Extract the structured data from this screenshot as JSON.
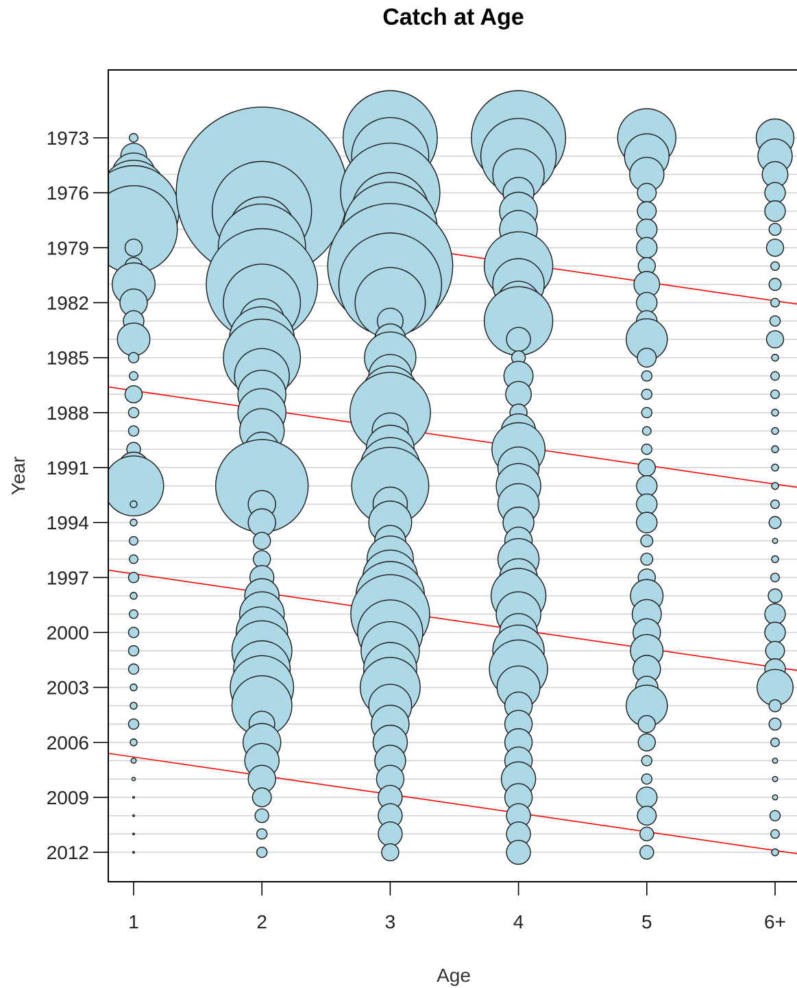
{
  "chart_data": {
    "type": "scatter",
    "subtype": "bubble",
    "title": "Catch at Age",
    "xlabel": "Age",
    "ylabel": "Year",
    "x_categories": [
      "1",
      "2",
      "3",
      "4",
      "5",
      "6+"
    ],
    "y_ticks": [
      1973,
      1976,
      1979,
      1982,
      1985,
      1988,
      1991,
      1994,
      1997,
      2000,
      2003,
      2006,
      2009,
      2012
    ],
    "ylim": [
      1969.4,
      2013.6
    ],
    "grid": "horizontal lines at each year",
    "bubble_fill": "#add8e6",
    "bubble_stroke": "#1a1a1a",
    "cohort_line_color": "#ff0000",
    "radius_scale": "area proportional to catch; values are relative radii (largest = 1.0)",
    "series": [
      {
        "age": "1",
        "values": [
          0.05,
          0.15,
          0.25,
          0.38,
          0.53,
          0.51,
          0.1,
          0.1,
          0.25,
          0.16,
          0.12,
          0.19,
          0.06,
          0.05,
          0.1,
          0.06,
          0.06,
          0.08,
          0.18,
          0.35,
          0.04,
          0.04,
          0.05,
          0.05,
          0.06,
          0.04,
          0.05,
          0.06,
          0.06,
          0.06,
          0.04,
          0.04,
          0.06,
          0.04,
          0.03,
          0.02,
          0.01,
          0.01,
          0.01,
          0.01
        ]
      },
      {
        "age": "2",
        "values": [
          0.1,
          0.13,
          0.5,
          1.0,
          0.58,
          0.38,
          0.51,
          0.37,
          0.65,
          0.45,
          0.26,
          0.38,
          0.45,
          0.32,
          0.28,
          0.28,
          0.26,
          0.2,
          0.3,
          0.54,
          0.16,
          0.16,
          0.1,
          0.1,
          0.14,
          0.2,
          0.26,
          0.3,
          0.35,
          0.33,
          0.37,
          0.35,
          0.15,
          0.22,
          0.2,
          0.16,
          0.11,
          0.08,
          0.06,
          0.06
        ]
      },
      {
        "age": "3",
        "values": [
          0.55,
          0.45,
          0.35,
          0.58,
          0.45,
          0.55,
          0.4,
          0.73,
          0.6,
          0.41,
          0.15,
          0.18,
          0.3,
          0.25,
          0.33,
          0.47,
          0.21,
          0.28,
          0.35,
          0.45,
          0.2,
          0.25,
          0.18,
          0.27,
          0.32,
          0.4,
          0.46,
          0.38,
          0.34,
          0.31,
          0.35,
          0.25,
          0.22,
          0.2,
          0.18,
          0.16,
          0.14,
          0.14,
          0.14,
          0.1
        ]
      },
      {
        "age": "4",
        "values": [
          0.55,
          0.44,
          0.3,
          0.18,
          0.22,
          0.22,
          0.18,
          0.4,
          0.3,
          0.25,
          0.4,
          0.14,
          0.08,
          0.17,
          0.15,
          0.1,
          0.2,
          0.31,
          0.24,
          0.26,
          0.24,
          0.18,
          0.16,
          0.24,
          0.22,
          0.32,
          0.26,
          0.22,
          0.3,
          0.34,
          0.25,
          0.16,
          0.16,
          0.16,
          0.16,
          0.2,
          0.16,
          0.14,
          0.14,
          0.14
        ]
      },
      {
        "age": "5",
        "values": [
          0.34,
          0.26,
          0.2,
          0.11,
          0.11,
          0.12,
          0.12,
          0.1,
          0.15,
          0.12,
          0.12,
          0.24,
          0.11,
          0.06,
          0.06,
          0.06,
          0.05,
          0.06,
          0.1,
          0.12,
          0.12,
          0.12,
          0.07,
          0.07,
          0.1,
          0.19,
          0.17,
          0.16,
          0.19,
          0.16,
          0.13,
          0.24,
          0.1,
          0.1,
          0.06,
          0.06,
          0.12,
          0.11,
          0.08,
          0.08
        ]
      },
      {
        "age": "6+",
        "values": [
          0.22,
          0.2,
          0.15,
          0.12,
          0.12,
          0.07,
          0.1,
          0.05,
          0.07,
          0.05,
          0.06,
          0.1,
          0.04,
          0.05,
          0.05,
          0.04,
          0.04,
          0.04,
          0.04,
          0.04,
          0.05,
          0.07,
          0.03,
          0.04,
          0.05,
          0.08,
          0.12,
          0.12,
          0.11,
          0.12,
          0.21,
          0.07,
          0.07,
          0.05,
          0.03,
          0.03,
          0.03,
          0.06,
          0.05,
          0.04
        ]
      }
    ],
    "years": [
      1973,
      1974,
      1975,
      1976,
      1977,
      1978,
      1979,
      1980,
      1981,
      1982,
      1983,
      1984,
      1985,
      1986,
      1987,
      1988,
      1989,
      1990,
      1991,
      1992,
      1993,
      1994,
      1995,
      1996,
      1997,
      1998,
      1999,
      2000,
      2001,
      2002,
      2003,
      2004,
      2005,
      2006,
      2007,
      2008,
      2009,
      2010,
      2011,
      2012
    ],
    "cohort_lines": [
      {
        "start": {
          "age": "1",
          "year": 1986.8
        },
        "end": {
          "age": "6+",
          "year": 1991.9
        }
      },
      {
        "start": {
          "age": "1",
          "year": 1996.8
        },
        "end": {
          "age": "6+",
          "year": 2001.9
        }
      },
      {
        "start": {
          "age": "1",
          "year": 2006.8
        },
        "end": {
          "age": "6+",
          "year": 2011.9
        }
      },
      {
        "start": {
          "age": "1",
          "year": 1976.8
        },
        "end": {
          "age": "6+",
          "year": 1981.9
        }
      }
    ]
  }
}
